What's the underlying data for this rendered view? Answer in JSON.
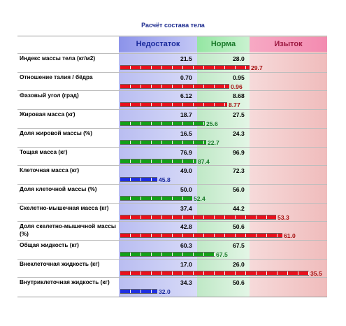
{
  "page_title": "Расчёт состава тела",
  "zones": {
    "under": "Недостаток",
    "norm": "Норма",
    "over": "Изыток"
  },
  "colors": {
    "under": "#1f2fe0",
    "norm": "#14a018",
    "over": "#e8101c",
    "under_text": "#1a2a9c",
    "norm_text": "#1a7a2a",
    "over_text": "#a51010"
  },
  "rows": [
    {
      "label": "Индекс массы тела (кг/м2)",
      "low": "21.5",
      "high": "28.0",
      "value": "29.7",
      "status": "over",
      "level": 0.63
    },
    {
      "label": "Отношение талия / бёдра",
      "low": "0.70",
      "high": "0.95",
      "value": "0.96",
      "status": "over",
      "level": 0.53
    },
    {
      "label": "Фазовый угол (град)",
      "low": "6.12",
      "high": "8.68",
      "value": "8.77",
      "status": "over",
      "level": 0.52
    },
    {
      "label": "Жировая масса (кг)",
      "low": "18.7",
      "high": "27.5",
      "value": "25.6",
      "status": "norm",
      "level": 0.41
    },
    {
      "label": "Доля жировой массы (%)",
      "low": "16.5",
      "high": "24.3",
      "value": "22.7",
      "status": "norm",
      "level": 0.42
    },
    {
      "label": "Тощая масса (кг)",
      "low": "76.9",
      "high": "96.9",
      "value": "87.4",
      "status": "norm",
      "level": 0.37
    },
    {
      "label": "Клеточная масса (кг)",
      "low": "49.0",
      "high": "72.3",
      "value": "45.8",
      "status": "under",
      "level": 0.18
    },
    {
      "label": "Доля клеточной массы (%)",
      "low": "50.0",
      "high": "56.0",
      "value": "52.4",
      "status": "norm",
      "level": 0.35
    },
    {
      "label": "Скелетно-мышечная масса (кг)",
      "low": "37.4",
      "high": "44.2",
      "value": "53.3",
      "status": "over",
      "level": 0.76
    },
    {
      "label": "Доля скелетно-мышечной массы (%)",
      "low": "42.8",
      "high": "50.6",
      "value": "61.0",
      "status": "over",
      "level": 0.79
    },
    {
      "label": "Общая жидкость (кг)",
      "low": "60.3",
      "high": "67.5",
      "value": "67.5",
      "status": "norm",
      "level": 0.46
    },
    {
      "label": "Внеклеточная жидкость (кг)",
      "low": "17.0",
      "high": "26.0",
      "value": "35.5",
      "status": "over",
      "level": 0.92
    },
    {
      "label": "Внутриклеточная жидкость (кг)",
      "low": "34.3",
      "high": "50.6",
      "value": "32.0",
      "status": "under",
      "level": 0.18
    }
  ]
}
